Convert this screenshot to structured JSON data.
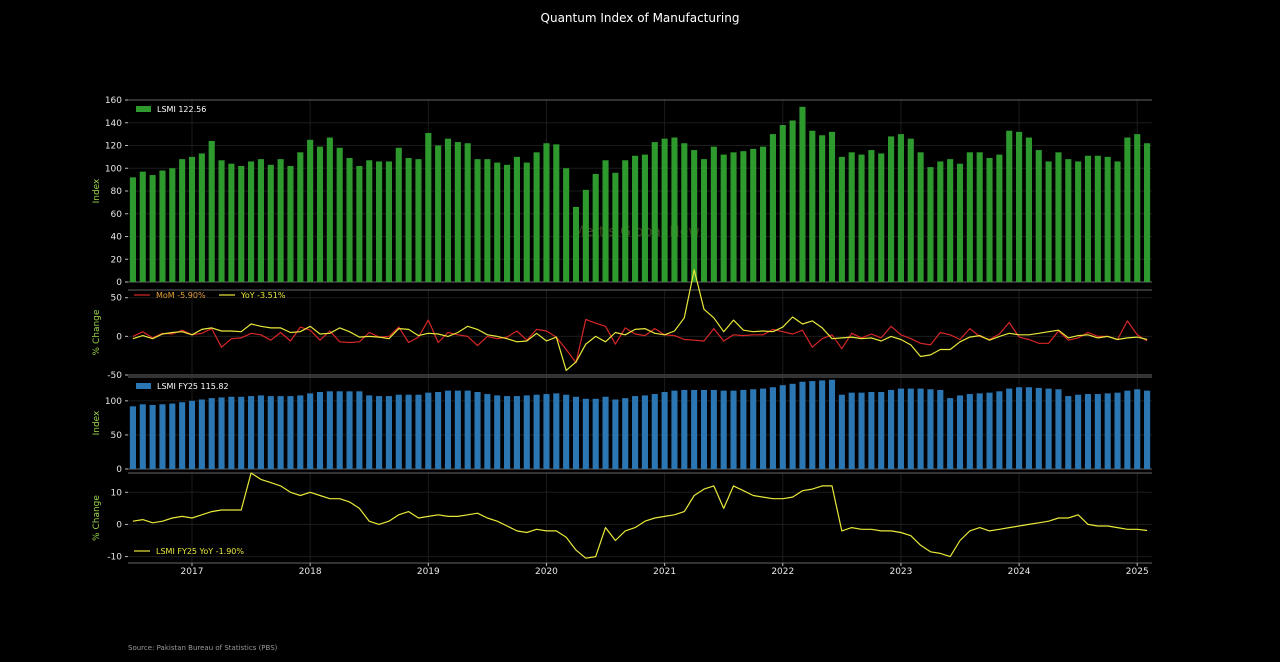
{
  "title": "Quantum Index of Manufacturing",
  "watermark": "Mettis Global News",
  "source": "Source: Pakistan Bureau of Statistics (PBS)",
  "colors": {
    "background": "#000000",
    "lsmi": "#2e9a2e",
    "mom": "#d62728",
    "yoy": "#e8e83a",
    "fy25": "#2a77b4",
    "axis_label": "#9bd24a"
  },
  "chart_data": [
    {
      "type": "bar",
      "panel": "lsmi",
      "ylabel": "Index",
      "ylim": [
        0,
        160
      ],
      "yticks": [
        0,
        20,
        40,
        60,
        80,
        100,
        120,
        140,
        160
      ],
      "legend": "LSMI 122.56",
      "legend_position": "top-left",
      "grid": true,
      "x_start": "2016-07",
      "xticks": [
        "2017",
        "2018",
        "2019",
        "2020",
        "2021",
        "2022",
        "2023",
        "2024",
        "2025"
      ],
      "series": [
        {
          "name": "LSMI",
          "values": [
            92,
            97,
            94,
            98,
            100,
            108,
            110,
            113,
            124,
            107,
            104,
            102,
            106,
            108,
            103,
            108,
            102,
            114,
            125,
            119,
            127,
            118,
            109,
            102,
            107,
            106,
            106,
            118,
            109,
            108,
            131,
            120,
            126,
            123,
            122,
            108,
            108,
            105,
            103,
            110,
            105,
            114,
            122,
            121,
            100,
            66,
            81,
            95,
            107,
            96,
            107,
            111,
            112,
            123,
            126,
            127,
            122,
            116,
            108,
            119,
            112,
            114,
            115,
            117,
            119,
            130,
            138,
            142,
            154,
            133,
            129,
            132,
            110,
            114,
            112,
            116,
            113,
            128,
            130,
            126,
            114,
            101,
            106,
            108,
            104,
            114,
            114,
            109,
            112,
            133,
            132,
            127,
            116,
            106,
            114,
            108,
            106,
            111,
            111,
            110,
            106,
            127,
            130,
            122
          ]
        }
      ]
    },
    {
      "type": "line",
      "panel": "pct_change",
      "ylabel": "% Change",
      "ylim": [
        -50,
        60
      ],
      "yticks": [
        -50,
        0,
        50
      ],
      "legend_position": "top-left",
      "grid": true,
      "series": [
        {
          "name": "MoM -5.90%",
          "values": [
            0,
            6,
            -2,
            4,
            3,
            8,
            2,
            4,
            10,
            -14,
            -3,
            -2,
            4,
            2,
            -5,
            5,
            -6,
            12,
            8,
            -5,
            7,
            -7,
            -8,
            -7,
            5,
            -1,
            0,
            12,
            -8,
            -1,
            21,
            -8,
            5,
            2,
            0,
            -12,
            0,
            -3,
            -1,
            7,
            -5,
            9,
            7,
            -1,
            -17,
            -34,
            22,
            17,
            13,
            -10,
            11,
            3,
            1,
            10,
            2,
            1,
            -4,
            -5,
            -6,
            10,
            -6,
            2,
            1,
            2,
            2,
            9,
            6,
            3,
            8,
            -14,
            -3,
            2,
            -16,
            4,
            -2,
            3,
            -2,
            13,
            2,
            -3,
            -9,
            -11,
            5,
            2,
            -4,
            10,
            0,
            -4,
            3,
            18,
            -1,
            -4,
            -9,
            -9,
            7,
            -5,
            -2,
            5,
            0,
            0,
            -4,
            20,
            2,
            -6
          ]
        },
        {
          "name": "YoY -3.51%",
          "values": [
            -3,
            1,
            -3,
            3,
            5,
            6,
            2,
            9,
            11,
            7,
            7,
            6,
            16,
            13,
            11,
            11,
            5,
            6,
            13,
            3,
            4,
            11,
            6,
            -1,
            0,
            -1,
            -3,
            10,
            9,
            1,
            4,
            3,
            0,
            5,
            13,
            9,
            2,
            0,
            -3,
            -7,
            -6,
            4,
            -6,
            -1,
            -44,
            -33,
            -10,
            0,
            -7,
            5,
            2,
            9,
            10,
            4,
            2,
            7,
            24,
            86,
            35,
            24,
            6,
            21,
            8,
            6,
            7,
            6,
            12,
            25,
            16,
            20,
            11,
            -3,
            -2,
            -1,
            -3,
            -2,
            -6,
            0,
            -4,
            -11,
            -26,
            -24,
            -17,
            -17,
            -7,
            -1,
            1,
            -5,
            0,
            4,
            2,
            2,
            4,
            6,
            8,
            -2,
            1,
            2,
            -2,
            0,
            -4,
            -2,
            -1,
            -4
          ]
        }
      ]
    },
    {
      "type": "bar",
      "panel": "fy25",
      "ylabel": "Index",
      "ylim": [
        0,
        135
      ],
      "yticks": [
        0,
        50,
        100
      ],
      "legend": "LSMI FY25 115.82",
      "legend_position": "top-left",
      "grid": true,
      "series": [
        {
          "name": "LSMI FY25",
          "values": [
            92,
            95,
            94,
            95,
            96,
            98,
            100,
            102,
            104,
            105,
            106,
            106,
            107,
            108,
            107,
            107,
            107,
            108,
            111,
            113,
            114,
            114,
            114,
            114,
            108,
            107,
            107,
            109,
            109,
            109,
            112,
            113,
            115,
            115,
            115,
            113,
            110,
            108,
            107,
            107,
            108,
            109,
            110,
            111,
            109,
            106,
            103,
            103,
            106,
            102,
            104,
            107,
            108,
            110,
            113,
            115,
            116,
            116,
            116,
            116,
            115,
            115,
            116,
            117,
            118,
            120,
            123,
            125,
            128,
            129,
            130,
            131,
            109,
            112,
            112,
            113,
            113,
            116,
            118,
            118,
            118,
            117,
            116,
            104,
            108,
            110,
            111,
            112,
            114,
            118,
            120,
            120,
            119,
            118,
            117,
            107,
            109,
            110,
            110,
            111,
            112,
            115,
            117,
            115
          ]
        }
      ]
    },
    {
      "type": "line",
      "panel": "fy25_yoy",
      "ylabel": "% Change",
      "ylim": [
        -12,
        16
      ],
      "yticks": [
        -10,
        0,
        10
      ],
      "legend_position": "bottom-left",
      "grid": true,
      "series": [
        {
          "name": "LSMI FY25 YoY -1.90%",
          "values": [
            1,
            1.5,
            0.5,
            1,
            2,
            2.5,
            2,
            3,
            4,
            4.5,
            4.5,
            4.5,
            16,
            14,
            13,
            12,
            10,
            9,
            10,
            9,
            8,
            8,
            7,
            5,
            1,
            0,
            1,
            3,
            4,
            2,
            2.5,
            3,
            2.5,
            2.5,
            3,
            3.5,
            2,
            1,
            -0.5,
            -2,
            -2.5,
            -1.5,
            -2,
            -2,
            -4,
            -8,
            -10.5,
            -10,
            -1,
            -5,
            -2,
            -1,
            1,
            2,
            2.5,
            3,
            4,
            9,
            11,
            12,
            5,
            12,
            10.5,
            9,
            8.5,
            8,
            8,
            8.5,
            10.5,
            11,
            12,
            12,
            -2,
            -1,
            -1.5,
            -1.5,
            -2,
            -2,
            -2.5,
            -3.5,
            -6.5,
            -8.5,
            -9,
            -10,
            -5,
            -2,
            -1,
            -2,
            -1.5,
            -1,
            -0.5,
            0,
            0.5,
            1,
            2,
            2,
            3,
            0,
            -0.5,
            -0.5,
            -1,
            -1.5,
            -1.5,
            -1.9
          ]
        }
      ]
    }
  ]
}
